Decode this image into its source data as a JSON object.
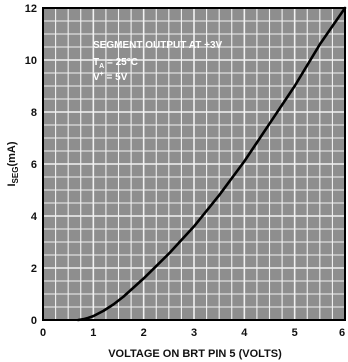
{
  "chart_data": {
    "type": "line",
    "title": "",
    "xlabel": "VOLTAGE ON BRT PIN 5 (VOLTS)",
    "ylabel": {
      "main": "I",
      "sub": "SEG",
      "suffix": "(mA)"
    },
    "xlim": [
      0,
      6
    ],
    "ylim": [
      0,
      12
    ],
    "x_ticks": [
      0,
      1,
      2,
      3,
      4,
      5,
      6
    ],
    "y_ticks": [
      0,
      2,
      4,
      6,
      8,
      10,
      12
    ],
    "grid": true,
    "annotations": {
      "line1": "SEGMENT OUTPUT AT +3V",
      "line2_main": "T",
      "line2_sub": "A",
      "line2_rest": " = 25°C",
      "line3_main": "V",
      "line3_sup": "+",
      "line3_rest": " = 5V"
    },
    "series": [
      {
        "x": [
          0.7,
          0.8,
          0.9,
          1.0,
          1.2,
          1.4,
          1.6,
          1.8,
          2.0,
          2.5,
          3.0,
          3.5,
          4.0,
          4.5,
          5.0,
          5.5,
          6.0
        ],
        "y": [
          0.0,
          0.03,
          0.08,
          0.15,
          0.35,
          0.6,
          0.9,
          1.25,
          1.6,
          2.55,
          3.6,
          4.8,
          6.1,
          7.55,
          9.0,
          10.6,
          12.0
        ]
      }
    ]
  }
}
